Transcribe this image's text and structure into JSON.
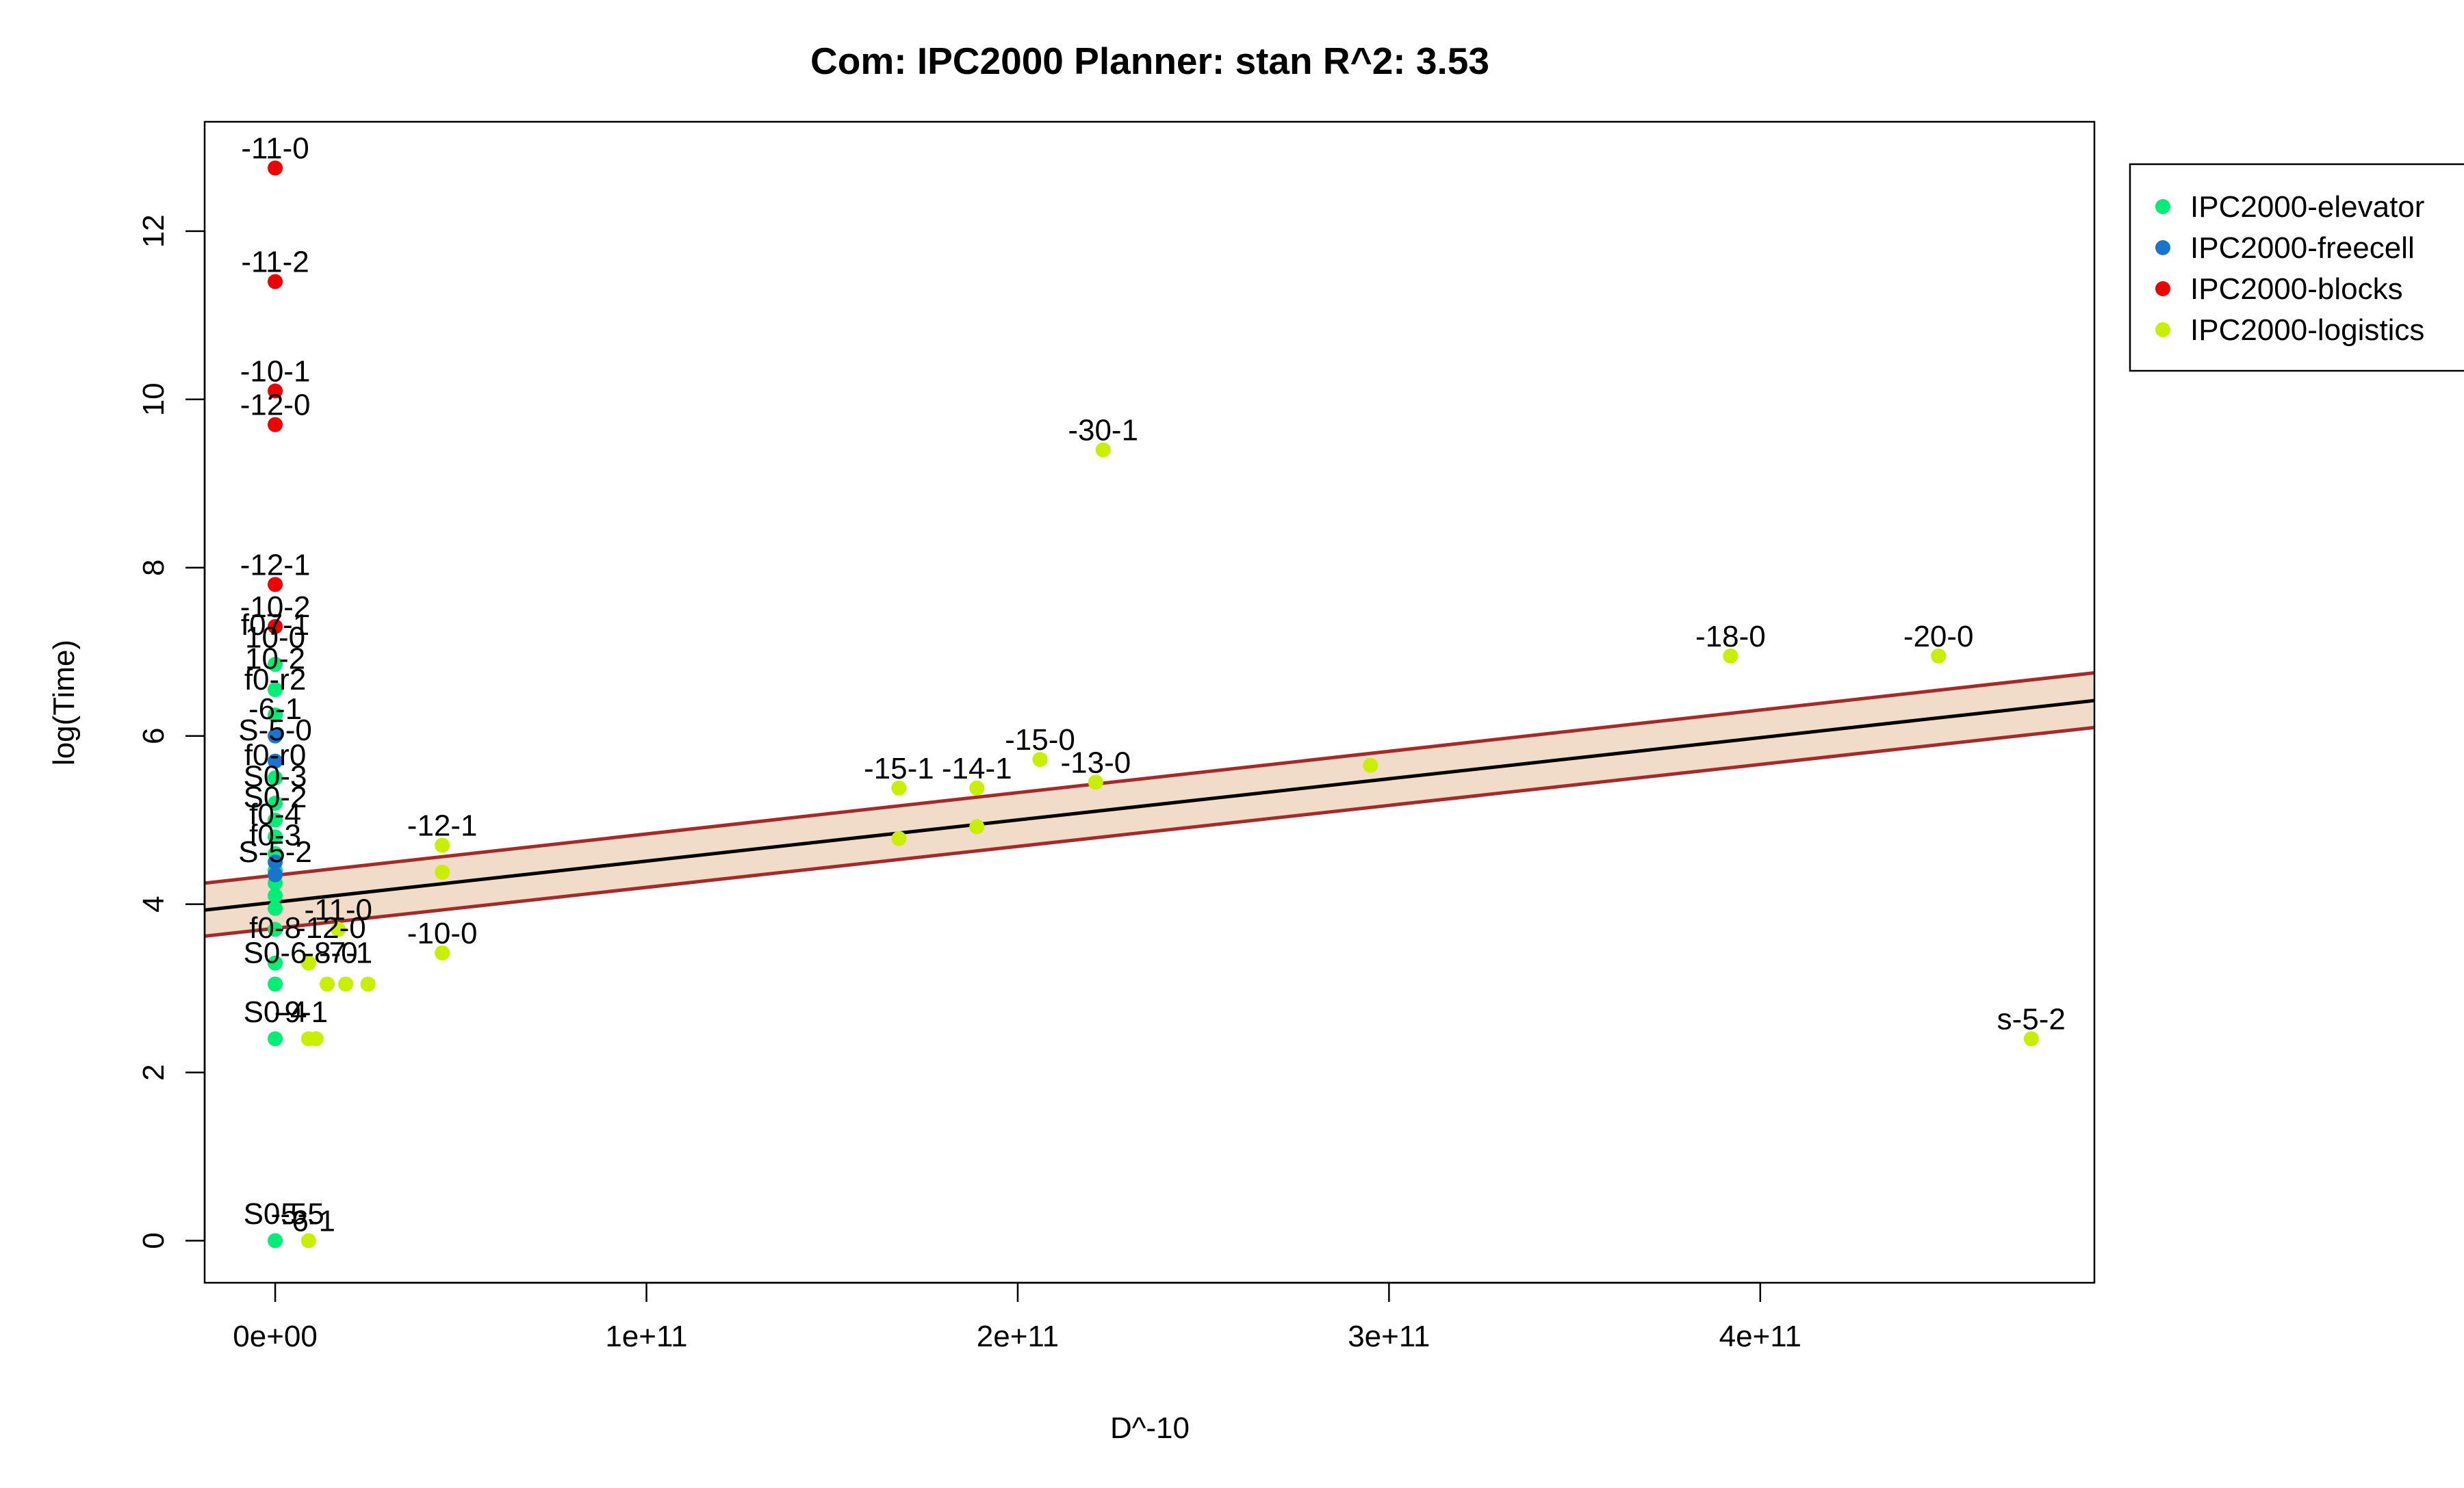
{
  "chart_data": {
    "type": "scatter",
    "title": "Com: IPC2000 Planner: stan R^2: 3.53",
    "xlabel": "D^-10",
    "ylabel": "log(Time)",
    "xlim": [
      -19000000000.0,
      490000000000.0
    ],
    "ylim": [
      -0.5,
      13.3
    ],
    "x_ticks": [
      0,
      100000000000.0,
      200000000000.0,
      300000000000.0,
      400000000000.0
    ],
    "x_tick_labels": [
      "0e+00",
      "1e+11",
      "2e+11",
      "3e+11",
      "4e+11"
    ],
    "y_ticks": [
      0,
      2,
      4,
      6,
      8,
      10,
      12
    ],
    "y_tick_labels": [
      "0",
      "2",
      "4",
      "6",
      "8",
      "10",
      "12"
    ],
    "grid": false,
    "legend_position": "right",
    "series": [
      {
        "name": "IPC2000-elevator",
        "color": "#00ee76",
        "points": [
          {
            "x": 0,
            "y": 0.0,
            "label": ""
          },
          {
            "x": 0,
            "y": 2.4,
            "label": ""
          },
          {
            "x": 0,
            "y": 3.05,
            "label": ""
          },
          {
            "x": 0,
            "y": 3.3,
            "label": ""
          },
          {
            "x": 0,
            "y": 3.7,
            "label": ""
          },
          {
            "x": 0,
            "y": 3.95,
            "label": ""
          },
          {
            "x": 0,
            "y": 4.1,
            "label": ""
          },
          {
            "x": 0,
            "y": 4.25,
            "label": ""
          },
          {
            "x": 0,
            "y": 4.4,
            "label": ""
          },
          {
            "x": 0,
            "y": 4.6,
            "label": ""
          },
          {
            "x": 0,
            "y": 4.8,
            "label": ""
          },
          {
            "x": 0,
            "y": 5.0,
            "label": ""
          },
          {
            "x": 0,
            "y": 5.2,
            "label": ""
          },
          {
            "x": 0,
            "y": 5.5,
            "label": ""
          },
          {
            "x": 0,
            "y": 6.25,
            "label": ""
          },
          {
            "x": 0,
            "y": 6.55,
            "label": ""
          },
          {
            "x": 0,
            "y": 6.85,
            "label": ""
          }
        ]
      },
      {
        "name": "IPC2000-freecell",
        "color": "#1874cd",
        "points": [
          {
            "x": 0,
            "y": 4.35,
            "label": ""
          },
          {
            "x": 0,
            "y": 4.5,
            "label": ""
          },
          {
            "x": 0,
            "y": 5.7,
            "label": ""
          },
          {
            "x": 0,
            "y": 6.0,
            "label": ""
          }
        ]
      },
      {
        "name": "IPC2000-blocks",
        "color": "#ee0000",
        "points": [
          {
            "x": 0,
            "y": 12.75,
            "label": "-11-0"
          },
          {
            "x": 0,
            "y": 11.4,
            "label": "-11-2"
          },
          {
            "x": 0,
            "y": 10.1,
            "label": "-10-1"
          },
          {
            "x": 0,
            "y": 9.7,
            "label": "-12-0"
          },
          {
            "x": 0,
            "y": 7.8,
            "label": "-12-1"
          },
          {
            "x": 0,
            "y": 7.3,
            "label": "-10-2"
          }
        ]
      },
      {
        "name": "IPC2000-logistics",
        "color": "#c8ee00",
        "points": [
          {
            "x": 223000000000.0,
            "y": 9.4,
            "label": "-30-1"
          },
          {
            "x": 392000000000.0,
            "y": 6.95,
            "label": "-18-0"
          },
          {
            "x": 448000000000.0,
            "y": 6.95,
            "label": "-20-0"
          },
          {
            "x": 206000000000.0,
            "y": 5.72,
            "label": "-15-0"
          },
          {
            "x": 168000000000.0,
            "y": 5.38,
            "label": "-15-1"
          },
          {
            "x": 189000000000.0,
            "y": 5.38,
            "label": "-14-1"
          },
          {
            "x": 221000000000.0,
            "y": 5.45,
            "label": "-13-0"
          },
          {
            "x": 295000000000.0,
            "y": 5.65,
            "label": ""
          },
          {
            "x": 168000000000.0,
            "y": 4.78,
            "label": ""
          },
          {
            "x": 189000000000.0,
            "y": 4.92,
            "label": ""
          },
          {
            "x": 45000000000.0,
            "y": 4.7,
            "label": "-12-1"
          },
          {
            "x": 45000000000.0,
            "y": 4.38,
            "label": ""
          },
          {
            "x": 45000000000.0,
            "y": 3.42,
            "label": "-10-0"
          },
          {
            "x": 17000000000.0,
            "y": 3.7,
            "label": "-11-0"
          },
          {
            "x": 25000000000.0,
            "y": 3.05,
            "label": ""
          },
          {
            "x": 19000000000.0,
            "y": 3.05,
            "label": ""
          },
          {
            "x": 14000000000.0,
            "y": 3.05,
            "label": ""
          },
          {
            "x": 9000000000.0,
            "y": 3.3,
            "label": ""
          },
          {
            "x": 473000000000.0,
            "y": 2.4,
            "label": "s-5-2"
          },
          {
            "x": 11000000000.0,
            "y": 2.4,
            "label": ""
          },
          {
            "x": 9000000000.0,
            "y": 2.4,
            "label": ""
          },
          {
            "x": 9000000000.0,
            "y": 0.0,
            "label": "-6-1"
          }
        ]
      }
    ],
    "cluster_labels": [
      {
        "x": 0,
        "y": 7.2,
        "text": "f07-1"
      },
      {
        "x": 0,
        "y": 7.05,
        "text": "10-0"
      },
      {
        "x": 0,
        "y": 6.8,
        "text": "10-2"
      },
      {
        "x": 0,
        "y": 6.55,
        "text": "f0-r2"
      },
      {
        "x": 0,
        "y": 6.2,
        "text": "-6-1"
      },
      {
        "x": 0,
        "y": 5.95,
        "text": "S-5-0"
      },
      {
        "x": 0,
        "y": 5.65,
        "text": "f0-r0"
      },
      {
        "x": 0,
        "y": 5.4,
        "text": "S0-3"
      },
      {
        "x": 0,
        "y": 5.15,
        "text": "S0-2"
      },
      {
        "x": 0,
        "y": 4.95,
        "text": "f0-4"
      },
      {
        "x": 0,
        "y": 4.7,
        "text": "f0-3"
      },
      {
        "x": 0,
        "y": 4.5,
        "text": "S-5-2"
      },
      {
        "x": 0,
        "y": 3.6,
        "text": "f0-8"
      },
      {
        "x": 0,
        "y": 3.3,
        "text": "S0-6"
      },
      {
        "x": 0,
        "y": 2.6,
        "text": "S0-4"
      },
      {
        "x": 0,
        "y": 0.2,
        "text": "S0-5"
      },
      {
        "x": 15000000000.0,
        "y": 3.6,
        "text": "-12-0"
      },
      {
        "x": 15000000000.0,
        "y": 3.3,
        "text": "-8-0"
      },
      {
        "x": 19000000000.0,
        "y": 3.3,
        "text": "-7-1"
      },
      {
        "x": 7000000000.0,
        "y": 2.6,
        "text": "-9-1"
      },
      {
        "x": 6000000000.0,
        "y": 0.2,
        "text": "-5-5"
      }
    ],
    "regression": {
      "fit_line": {
        "x": [
          -19000000000.0,
          490000000000.0
        ],
        "y": [
          3.93,
          6.42
        ]
      },
      "upper_band": {
        "x": [
          -19000000000.0,
          490000000000.0
        ],
        "y": [
          4.25,
          6.75
        ]
      },
      "lower_band": {
        "x": [
          -19000000000.0,
          490000000000.0
        ],
        "y": [
          3.62,
          6.1
        ]
      },
      "band_fill_color": "#f0dcc8",
      "band_line_color": "#a52a2a",
      "fit_line_color": "#000000"
    }
  }
}
